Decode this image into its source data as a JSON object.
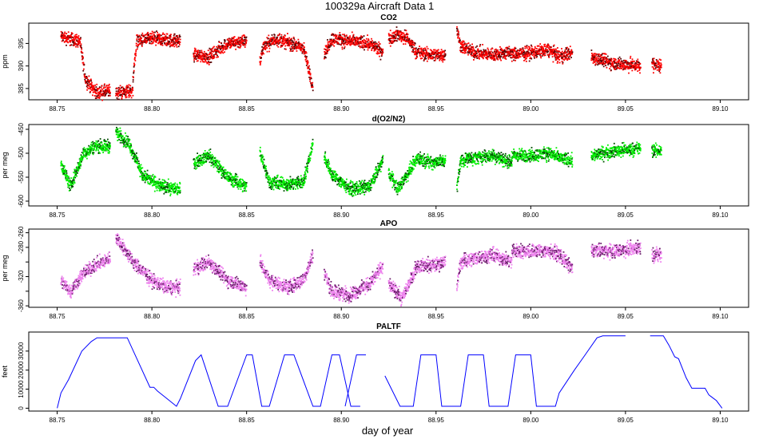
{
  "figure": {
    "title": "100329a   Aircraft Data 1",
    "xlabel": "day of year"
  },
  "chart_data": [
    {
      "type": "scatter",
      "title": "CO2",
      "ylabel": "ppm",
      "xlim": [
        88.735,
        89.115
      ],
      "ylim": [
        382.5,
        399.5
      ],
      "x_ticks": [
        88.75,
        88.8,
        88.85,
        88.9,
        88.95,
        89.0,
        89.05,
        89.1
      ],
      "x_tick_labels": [
        "88.75",
        "88.80",
        "88.85",
        "88.90",
        "88.95",
        "89.00",
        "89.05",
        "89.10"
      ],
      "y_ticks": [
        385,
        390,
        395
      ],
      "y_tick_labels": [
        "385",
        "390",
        "395"
      ],
      "color": "#ff0000",
      "edge_color": "#5a0000",
      "noise": 1.1,
      "segments": [
        {
          "x": [
            88.752,
            88.762,
            88.765,
            88.771,
            88.778
          ],
          "y": [
            396.5,
            395.5,
            387,
            384,
            384.5
          ]
        },
        {
          "x": [
            88.781,
            88.79
          ],
          "y": [
            384,
            384.5
          ]
        },
        {
          "x": [
            88.79,
            88.792,
            88.8,
            88.815
          ],
          "y": [
            387,
            395.5,
            396,
            395.5
          ]
        },
        {
          "x": [
            88.822,
            88.83,
            88.84,
            88.85
          ],
          "y": [
            392.5,
            392,
            395,
            395.5
          ]
        },
        {
          "x": [
            88.857,
            88.859,
            88.866,
            88.88,
            88.885
          ],
          "y": [
            391,
            394.5,
            396,
            394,
            385.5
          ]
        },
        {
          "x": [
            88.891,
            88.895,
            88.905,
            88.915,
            88.922
          ],
          "y": [
            392.5,
            396,
            395.5,
            395,
            393
          ]
        },
        {
          "x": [
            88.925,
            88.93,
            88.935,
            88.94,
            88.945,
            88.955
          ],
          "y": [
            396,
            397,
            396,
            393,
            392.5,
            392.5
          ]
        },
        {
          "x": [
            88.961,
            88.963,
            88.97,
            88.98,
            88.99
          ],
          "y": [
            398,
            394.5,
            393,
            392.5,
            393
          ]
        },
        {
          "x": [
            88.99,
            89.0,
            89.01,
            89.015,
            89.022
          ],
          "y": [
            392.5,
            393,
            393.5,
            392,
            393
          ]
        },
        {
          "x": [
            89.032,
            89.04,
            89.045,
            89.058
          ],
          "y": [
            392,
            391,
            390.5,
            390
          ]
        },
        {
          "x": [
            89.064,
            89.069
          ],
          "y": [
            390.5,
            390
          ]
        }
      ]
    },
    {
      "type": "scatter",
      "title": "d(O2/N2)",
      "ylabel": "per meg",
      "xlim": [
        88.735,
        89.115
      ],
      "ylim": [
        -610,
        -440
      ],
      "x_ticks": [
        88.75,
        88.8,
        88.85,
        88.9,
        88.95,
        89.0,
        89.05,
        89.1
      ],
      "x_tick_labels": [
        "88.75",
        "88.80",
        "88.85",
        "88.90",
        "88.95",
        "89.00",
        "89.05",
        "89.10"
      ],
      "y_ticks": [
        -600,
        -550,
        -500,
        -450
      ],
      "y_tick_labels": [
        "-600",
        "-550",
        "-500",
        "-450"
      ],
      "color": "#00ee00",
      "edge_color": "#004d00",
      "noise": 10,
      "segments": [
        {
          "x": [
            88.752,
            88.757,
            88.764,
            88.77,
            88.778
          ],
          "y": [
            -520,
            -570,
            -500,
            -485,
            -485
          ]
        },
        {
          "x": [
            88.781,
            88.788,
            88.795,
            88.805,
            88.815
          ],
          "y": [
            -455,
            -480,
            -545,
            -570,
            -575
          ]
        },
        {
          "x": [
            88.822,
            88.83,
            88.84,
            88.85
          ],
          "y": [
            -520,
            -505,
            -550,
            -570
          ]
        },
        {
          "x": [
            88.857,
            88.862,
            88.872,
            88.88,
            88.885
          ],
          "y": [
            -495,
            -560,
            -565,
            -560,
            -480
          ]
        },
        {
          "x": [
            88.891,
            88.895,
            88.905,
            88.915,
            88.922
          ],
          "y": [
            -505,
            -545,
            -575,
            -570,
            -515
          ]
        },
        {
          "x": [
            88.925,
            88.93,
            88.94,
            88.948,
            88.955
          ],
          "y": [
            -540,
            -575,
            -510,
            -520,
            -515
          ]
        },
        {
          "x": [
            88.961,
            88.963,
            88.97,
            88.98,
            88.99
          ],
          "y": [
            -575,
            -515,
            -510,
            -505,
            -520
          ]
        },
        {
          "x": [
            88.99,
            89.0,
            89.01,
            89.015,
            89.022
          ],
          "y": [
            -505,
            -505,
            -500,
            -510,
            -515
          ]
        },
        {
          "x": [
            89.032,
            89.045,
            89.058
          ],
          "y": [
            -505,
            -495,
            -490
          ]
        },
        {
          "x": [
            89.064,
            89.069
          ],
          "y": [
            -495,
            -495
          ]
        }
      ]
    },
    {
      "type": "scatter",
      "title": "APO",
      "ylabel": "per meg",
      "xlim": [
        88.735,
        89.115
      ],
      "ylim": [
        -362,
        -255
      ],
      "x_ticks": [
        88.75,
        88.8,
        88.85,
        88.9,
        88.95,
        89.0,
        89.05,
        89.1
      ],
      "x_tick_labels": [
        "88.75",
        "88.80",
        "88.85",
        "88.90",
        "88.95",
        "89.00",
        "89.05",
        "89.10"
      ],
      "y_ticks": [
        -360,
        -340,
        -320,
        -300,
        -280,
        -260
      ],
      "y_tick_labels": [
        "-360",
        "",
        "-320",
        "",
        "-280",
        "-260"
      ],
      "color": "#ee82ee",
      "edge_color": "#6a1b6a",
      "noise": 7,
      "segments": [
        {
          "x": [
            88.752,
            88.757,
            88.764,
            88.77,
            88.778
          ],
          "y": [
            -325,
            -340,
            -315,
            -305,
            -295
          ]
        },
        {
          "x": [
            88.781,
            88.79,
            88.8,
            88.808,
            88.815
          ],
          "y": [
            -265,
            -300,
            -325,
            -335,
            -335
          ]
        },
        {
          "x": [
            88.822,
            88.83,
            88.84,
            88.85
          ],
          "y": [
            -310,
            -300,
            -325,
            -335
          ]
        },
        {
          "x": [
            88.857,
            88.862,
            88.872,
            88.88,
            88.885
          ],
          "y": [
            -300,
            -325,
            -335,
            -325,
            -290
          ]
        },
        {
          "x": [
            88.891,
            88.895,
            88.905,
            88.915,
            88.922
          ],
          "y": [
            -315,
            -340,
            -345,
            -330,
            -305
          ]
        },
        {
          "x": [
            88.925,
            88.932,
            88.94,
            88.948,
            88.955
          ],
          "y": [
            -330,
            -350,
            -305,
            -305,
            -300
          ]
        },
        {
          "x": [
            88.961,
            88.963,
            88.97,
            88.98,
            88.99
          ],
          "y": [
            -335,
            -300,
            -295,
            -290,
            -300
          ]
        },
        {
          "x": [
            88.99,
            89.0,
            89.01,
            89.015,
            89.022
          ],
          "y": [
            -285,
            -285,
            -285,
            -290,
            -310
          ]
        },
        {
          "x": [
            89.032,
            89.045,
            89.058
          ],
          "y": [
            -285,
            -285,
            -280
          ]
        },
        {
          "x": [
            89.064,
            89.069
          ],
          "y": [
            -290,
            -290
          ]
        }
      ]
    },
    {
      "type": "line",
      "title": "PALTF",
      "ylabel": "feet",
      "xlim": [
        88.735,
        89.115
      ],
      "ylim": [
        -1500,
        40000
      ],
      "x_ticks": [
        88.75,
        88.8,
        88.85,
        88.9,
        88.95,
        89.0,
        89.05,
        89.1
      ],
      "x_tick_labels": [
        "88.75",
        "88.80",
        "88.85",
        "88.90",
        "88.95",
        "89.00",
        "89.05",
        "89.10"
      ],
      "y_ticks": [
        0,
        10000,
        20000,
        30000
      ],
      "y_tick_labels": [
        "0",
        "10000",
        "20000",
        "30000"
      ],
      "color": "#0000ff",
      "segments": [
        {
          "x": [
            88.75,
            88.752,
            88.756,
            88.763,
            88.768,
            88.771,
            88.787,
            88.799,
            88.801,
            88.803,
            88.808,
            88.813,
            88.815,
            88.823,
            88.826,
            88.835,
            88.84,
            88.85,
            88.853,
            88.858,
            88.862,
            88.87,
            88.875,
            88.885,
            88.889,
            88.895,
            88.899,
            88.905,
            88.91
          ],
          "y": [
            0,
            8000,
            15000,
            30000,
            35000,
            37000,
            37000,
            11000,
            11000,
            9000,
            5000,
            1000,
            5000,
            25000,
            28000,
            1000,
            1000,
            28000,
            28000,
            1000,
            1000,
            28000,
            28000,
            1000,
            1000,
            28000,
            28000,
            1000,
            1000
          ]
        },
        {
          "x": [
            88.902,
            88.908,
            88.913
          ],
          "y": [
            1000,
            28000,
            28000
          ]
        },
        {
          "x": [
            88.923,
            88.931,
            88.938,
            88.942,
            88.95,
            88.953,
            88.963,
            88.967,
            88.975,
            88.978,
            88.988,
            88.992,
            89.0,
            89.003,
            89.013,
            89.015,
            89.023,
            89.028,
            89.035,
            89.038,
            89.05
          ],
          "y": [
            17000,
            1000,
            1000,
            28000,
            28000,
            1000,
            1000,
            28000,
            28000,
            1000,
            1000,
            28000,
            28000,
            1000,
            1000,
            8000,
            20000,
            27000,
            37000,
            38000,
            38000
          ]
        },
        {
          "x": [
            89.063,
            89.07,
            89.073,
            89.076,
            89.078,
            89.082,
            89.085,
            89.092,
            89.094,
            89.098,
            89.101
          ],
          "y": [
            38000,
            38000,
            33000,
            27000,
            26000,
            16000,
            10500,
            10500,
            7000,
            4000,
            0
          ]
        }
      ]
    }
  ]
}
